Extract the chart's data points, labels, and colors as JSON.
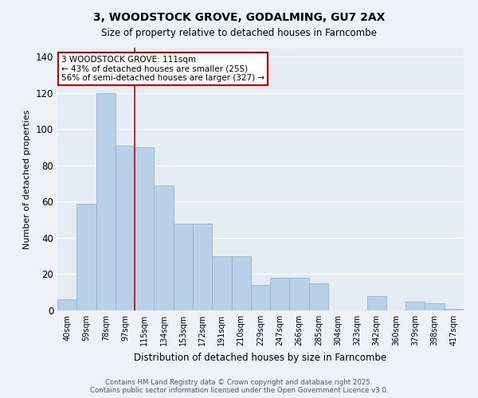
{
  "title": "3, WOODSTOCK GROVE, GODALMING, GU7 2AX",
  "subtitle": "Size of property relative to detached houses in Farncombe",
  "xlabel": "Distribution of detached houses by size in Farncombe",
  "ylabel": "Number of detached properties",
  "categories": [
    "40sqm",
    "59sqm",
    "78sqm",
    "97sqm",
    "115sqm",
    "134sqm",
    "153sqm",
    "172sqm",
    "191sqm",
    "210sqm",
    "229sqm",
    "247sqm",
    "266sqm",
    "285sqm",
    "304sqm",
    "323sqm",
    "342sqm",
    "360sqm",
    "379sqm",
    "398sqm",
    "417sqm"
  ],
  "values": [
    6,
    59,
    120,
    91,
    90,
    69,
    48,
    48,
    30,
    30,
    14,
    18,
    18,
    15,
    0,
    0,
    8,
    0,
    5,
    4,
    1
  ],
  "bar_color": "#b8d0e8",
  "bar_edge_color": "#8aafc8",
  "vline_x": 3.5,
  "annotation_title": "3 WOODSTOCK GROVE: 111sqm",
  "annotation_line1": "← 43% of detached houses are smaller (255)",
  "annotation_line2": "56% of semi-detached houses are larger (327) →",
  "annotation_box_color": "#ffffff",
  "annotation_box_edge_color": "#cc0000",
  "vline_color": "#cc0000",
  "ylim": [
    0,
    145
  ],
  "yticks": [
    0,
    20,
    40,
    60,
    80,
    100,
    120,
    140
  ],
  "background_color": "#eef2f7",
  "plot_background_color": "#e4ecf4",
  "grid_color": "#ffffff",
  "title_fontsize": 10,
  "subtitle_fontsize": 8.5,
  "footnote": "Contains HM Land Registry data © Crown copyright and database right 2025.\nContains public sector information licensed under the Open Government Licence v3.0."
}
